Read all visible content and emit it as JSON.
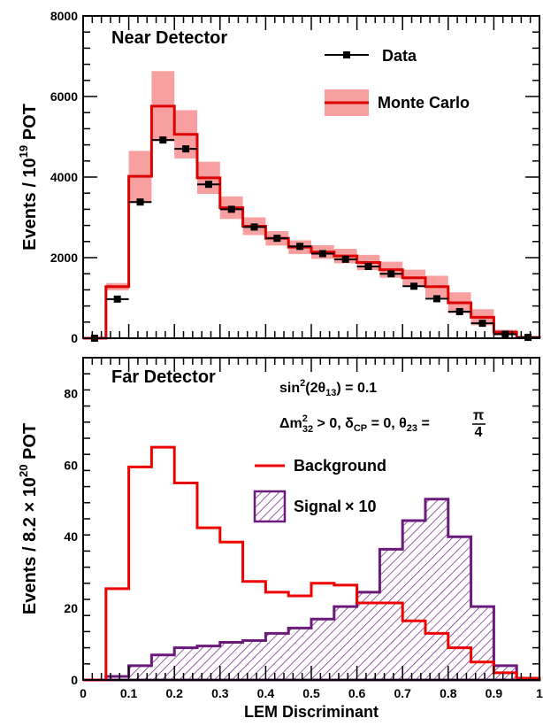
{
  "chart_data": [
    {
      "type": "histogram",
      "title": "Near Detector",
      "ylabel_parts": [
        "Events / 10",
        "19",
        " POT"
      ],
      "xlim": [
        0,
        1
      ],
      "ylim": [
        0,
        8000
      ],
      "yticks": [
        0,
        2000,
        4000,
        6000,
        8000
      ],
      "bin_edges": [
        0,
        0.05,
        0.1,
        0.15,
        0.2,
        0.25,
        0.3,
        0.35,
        0.4,
        0.45,
        0.5,
        0.55,
        0.6,
        0.65,
        0.7,
        0.75,
        0.8,
        0.85,
        0.9,
        0.95,
        1.0
      ],
      "series": [
        {
          "name": "Data",
          "style": "points",
          "color": "#000000",
          "values": [
            0,
            970,
            3380,
            4920,
            4700,
            3820,
            3200,
            2760,
            2480,
            2280,
            2100,
            1960,
            1780,
            1600,
            1290,
            980,
            660,
            370,
            100,
            20
          ]
        },
        {
          "name": "Monte Carlo",
          "style": "step",
          "color": "#dd0000",
          "band_color": "#f8a0a0",
          "values": [
            0,
            1280,
            4020,
            5760,
            5060,
            3980,
            3240,
            2780,
            2480,
            2260,
            2140,
            2040,
            1880,
            1700,
            1500,
            1280,
            880,
            520,
            150,
            20
          ],
          "band_halfwidth": [
            0,
            90,
            630,
            870,
            600,
            400,
            280,
            220,
            180,
            170,
            170,
            180,
            190,
            200,
            200,
            270,
            260,
            200,
            60,
            10
          ]
        }
      ]
    },
    {
      "type": "histogram",
      "title": "Far Detector",
      "ylabel_parts": [
        "Events / 8.2 × 10",
        "20",
        " POT"
      ],
      "xlabel": "LEM Discriminant",
      "xlim": [
        0,
        1
      ],
      "ylim": [
        0,
        90
      ],
      "yticks": [
        0,
        20,
        40,
        60,
        80
      ],
      "xticks": [
        "0",
        "0.1",
        "0.2",
        "0.3",
        "0.4",
        "0.5",
        "0.6",
        "0.7",
        "0.8",
        "0.9",
        "1"
      ],
      "bin_edges": [
        0,
        0.05,
        0.1,
        0.15,
        0.2,
        0.25,
        0.3,
        0.35,
        0.4,
        0.45,
        0.5,
        0.55,
        0.6,
        0.65,
        0.7,
        0.75,
        0.8,
        0.85,
        0.9,
        0.95,
        1.0
      ],
      "annotations": {
        "line1": {
          "a": "sin",
          "sup": "2",
          "b": "(2θ",
          "sub": "13",
          "c": ") = 0.1"
        },
        "line2": {
          "delta": "Δm",
          "msup": "2",
          "msub": "32",
          "cond": " > 0, δ",
          "cpsub": "CP",
          "mid": " = 0, θ",
          "tsub": "23",
          "eq": " =",
          "num": "π",
          "den": "4"
        }
      },
      "series": [
        {
          "name": "Background",
          "style": "step",
          "color": "#ee0000",
          "values": [
            0,
            25.5,
            59.5,
            65,
            55,
            42.5,
            38.5,
            27.5,
            24.5,
            23.5,
            27,
            26.5,
            21.5,
            21.5,
            16.5,
            13,
            9,
            5,
            2,
            0.5
          ]
        },
        {
          "name": "Signal",
          "legend_suffix": "× 10",
          "style": "hatched",
          "color": "#6a1b7a",
          "values": [
            0,
            1,
            4,
            7,
            9,
            9.5,
            10.5,
            11,
            13,
            14.5,
            17,
            20.5,
            24.5,
            36.5,
            44.5,
            50.5,
            40,
            20.5,
            4,
            0.5
          ]
        }
      ]
    }
  ]
}
